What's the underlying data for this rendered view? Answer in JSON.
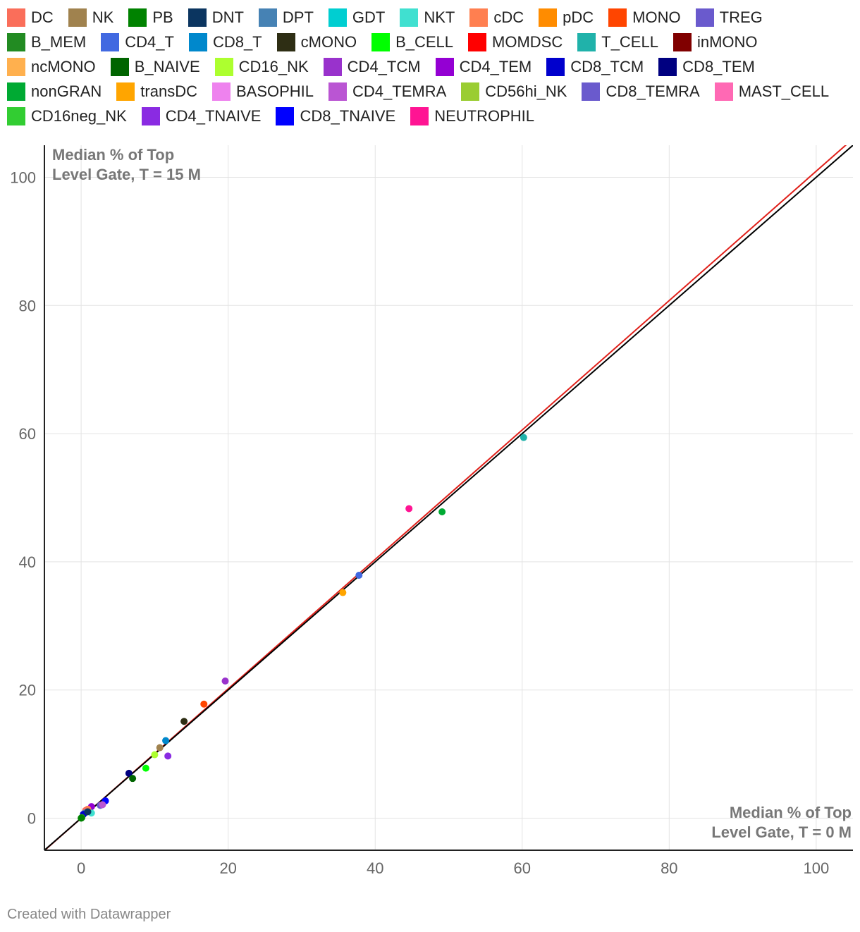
{
  "legend": [
    {
      "name": "DC",
      "color": "#FA6E5A"
    },
    {
      "name": "NK",
      "color": "#A0824E"
    },
    {
      "name": "PB",
      "color": "#008200"
    },
    {
      "name": "DNT",
      "color": "#0B3560"
    },
    {
      "name": "DPT",
      "color": "#4682B4"
    },
    {
      "name": "GDT",
      "color": "#00CED1"
    },
    {
      "name": "NKT",
      "color": "#40E0D0"
    },
    {
      "name": "cDC",
      "color": "#FF7F50"
    },
    {
      "name": "pDC",
      "color": "#FF8C00"
    },
    {
      "name": "MONO",
      "color": "#FF4500"
    },
    {
      "name": "TREG",
      "color": "#6A5ACD"
    },
    {
      "name": "B_MEM",
      "color": "#228B22"
    },
    {
      "name": "CD4_T",
      "color": "#4169E1"
    },
    {
      "name": "CD8_T",
      "color": "#0088CC"
    },
    {
      "name": "cMONO",
      "color": "#2E2E14"
    },
    {
      "name": "B_CELL",
      "color": "#00FF00"
    },
    {
      "name": "MOMDSC",
      "color": "#FF0000"
    },
    {
      "name": "T_CELL",
      "color": "#20B2AA"
    },
    {
      "name": "inMONO",
      "color": "#800000"
    },
    {
      "name": "ncMONO",
      "color": "#FFB04E"
    },
    {
      "name": "B_NAIVE",
      "color": "#006400"
    },
    {
      "name": "CD16_NK",
      "color": "#ADFF2F"
    },
    {
      "name": "CD4_TCM",
      "color": "#9932CC"
    },
    {
      "name": "CD4_TEM",
      "color": "#9400D3"
    },
    {
      "name": "CD8_TCM",
      "color": "#0000CD"
    },
    {
      "name": "CD8_TEM",
      "color": "#000080"
    },
    {
      "name": "nonGRAN",
      "color": "#00AA33"
    },
    {
      "name": "transDC",
      "color": "#FFA500"
    },
    {
      "name": "BASOPHIL",
      "color": "#EE82EE"
    },
    {
      "name": "CD4_TEMRA",
      "color": "#BA55D3"
    },
    {
      "name": "CD56hi_NK",
      "color": "#9ACD32"
    },
    {
      "name": "CD8_TEMRA",
      "color": "#6A5ACD"
    },
    {
      "name": "MAST_CELL",
      "color": "#FF69B4"
    },
    {
      "name": "CD16neg_NK",
      "color": "#32CD32"
    },
    {
      "name": "CD4_TNAIVE",
      "color": "#8A2BE2"
    },
    {
      "name": "CD8_TNAIVE",
      "color": "#0000FF"
    },
    {
      "name": "NEUTROPHIL",
      "color": "#FF1493"
    }
  ],
  "chart_data": {
    "type": "scatter",
    "title": "",
    "xlabel": "Median % of Top Level Gate, T = 0 M",
    "ylabel": "Median % of Top Level Gate, T = 15 M",
    "xlim": [
      -5,
      105
    ],
    "ylim": [
      -5,
      105
    ],
    "xticks": [
      0,
      20,
      40,
      60,
      80,
      100
    ],
    "yticks": [
      0,
      20,
      40,
      60,
      80,
      100
    ],
    "grid": true,
    "legend_position": "top",
    "points": [
      {
        "name": "T_CELL",
        "x": 60.2,
        "y": 59.4
      },
      {
        "name": "NEUTROPHIL",
        "x": 44.6,
        "y": 48.3
      },
      {
        "name": "nonGRAN",
        "x": 49.1,
        "y": 47.8
      },
      {
        "name": "CD4_T",
        "x": 37.8,
        "y": 37.9
      },
      {
        "name": "transDC",
        "x": 35.6,
        "y": 35.2
      },
      {
        "name": "CD4_TCM",
        "x": 19.6,
        "y": 21.4
      },
      {
        "name": "MONO",
        "x": 16.7,
        "y": 17.8
      },
      {
        "name": "cMONO",
        "x": 14.0,
        "y": 15.1
      },
      {
        "name": "CD8_T",
        "x": 11.5,
        "y": 12.1
      },
      {
        "name": "NK",
        "x": 10.7,
        "y": 11.0
      },
      {
        "name": "CD16_NK",
        "x": 10.0,
        "y": 9.9
      },
      {
        "name": "CD4_TNAIVE",
        "x": 11.8,
        "y": 9.7
      },
      {
        "name": "B_CELL",
        "x": 8.8,
        "y": 7.8
      },
      {
        "name": "CD8_TEM",
        "x": 6.5,
        "y": 7.0
      },
      {
        "name": "B_NAIVE",
        "x": 7.0,
        "y": 6.2
      },
      {
        "name": "CD8_TNAIVE",
        "x": 3.3,
        "y": 2.7
      },
      {
        "name": "CD8_TEMRA",
        "x": 2.6,
        "y": 2.0
      },
      {
        "name": "CD4_TEMRA",
        "x": 2.9,
        "y": 2.1
      },
      {
        "name": "CD4_TEM",
        "x": 1.4,
        "y": 1.8
      },
      {
        "name": "cDC",
        "x": 0.9,
        "y": 1.4
      },
      {
        "name": "NKT",
        "x": 1.4,
        "y": 0.8
      },
      {
        "name": "DC",
        "x": 0.6,
        "y": 1.2
      },
      {
        "name": "DPT",
        "x": 0.5,
        "y": 0.8
      },
      {
        "name": "CD8_TCM",
        "x": 0.3,
        "y": 0.6
      },
      {
        "name": "DNT",
        "x": 0.9,
        "y": 1.0
      },
      {
        "name": "B_MEM",
        "x": 0.1,
        "y": 0.1
      },
      {
        "name": "PB",
        "x": 0.0,
        "y": 0.0
      }
    ],
    "lines": [
      {
        "type": "identity",
        "color": "#000000",
        "x": [
          -5,
          105
        ],
        "y": [
          -5,
          105
        ]
      },
      {
        "type": "regression",
        "color": "#E0201A",
        "x": [
          -5,
          105
        ],
        "y": [
          -5.05,
          106.0
        ]
      }
    ]
  },
  "footer": {
    "credit": "Created with Datawrapper"
  }
}
